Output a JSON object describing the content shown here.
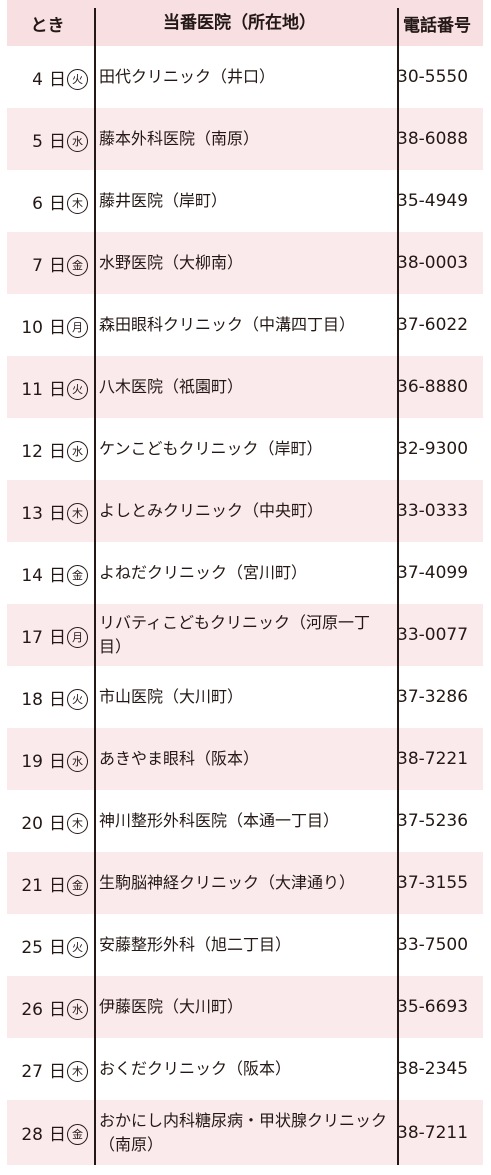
{
  "headers": {
    "date": "とき",
    "clinic": "当番医院（所在地）",
    "phone": "電話番号"
  },
  "rows": [
    {
      "day": "4",
      "unit": "日",
      "dow": "火",
      "clinic": "田代クリニック（井口）",
      "phone": "30-5550"
    },
    {
      "day": "5",
      "unit": "日",
      "dow": "水",
      "clinic": "藤本外科医院（南原）",
      "phone": "38-6088"
    },
    {
      "day": "6",
      "unit": "日",
      "dow": "木",
      "clinic": "藤井医院（岸町）",
      "phone": "35-4949"
    },
    {
      "day": "7",
      "unit": "日",
      "dow": "金",
      "clinic": "水野医院（大柳南）",
      "phone": "38-0003"
    },
    {
      "day": "10",
      "unit": "日",
      "dow": "月",
      "clinic": "森田眼科クリニック（中溝四丁目）",
      "phone": "37-6022"
    },
    {
      "day": "11",
      "unit": "日",
      "dow": "火",
      "clinic": "八木医院（祇園町）",
      "phone": "36-8880"
    },
    {
      "day": "12",
      "unit": "日",
      "dow": "水",
      "clinic": "ケンこどもクリニック（岸町）",
      "phone": "32-9300"
    },
    {
      "day": "13",
      "unit": "日",
      "dow": "木",
      "clinic": "よしとみクリニック（中央町）",
      "phone": "33-0333"
    },
    {
      "day": "14",
      "unit": "日",
      "dow": "金",
      "clinic": "よねだクリニック（宮川町）",
      "phone": "37-4099"
    },
    {
      "day": "17",
      "unit": "日",
      "dow": "月",
      "clinic": "リバティこどもクリニック（河原一丁目）",
      "phone": "33-0077"
    },
    {
      "day": "18",
      "unit": "日",
      "dow": "火",
      "clinic": "市山医院（大川町）",
      "phone": "37-3286"
    },
    {
      "day": "19",
      "unit": "日",
      "dow": "水",
      "clinic": "あきやま眼科（阪本）",
      "phone": "38-7221"
    },
    {
      "day": "20",
      "unit": "日",
      "dow": "木",
      "clinic": "神川整形外科医院（本通一丁目）",
      "phone": "37-5236"
    },
    {
      "day": "21",
      "unit": "日",
      "dow": "金",
      "clinic": "生駒脳神経クリニック（大津通り）",
      "phone": "37-3155"
    },
    {
      "day": "25",
      "unit": "日",
      "dow": "火",
      "clinic": "安藤整形外科（旭二丁目）",
      "phone": "33-7500"
    },
    {
      "day": "26",
      "unit": "日",
      "dow": "水",
      "clinic": "伊藤医院（大川町）",
      "phone": "35-6693"
    },
    {
      "day": "27",
      "unit": "日",
      "dow": "木",
      "clinic": "おくだクリニック（阪本）",
      "phone": "38-2345"
    },
    {
      "day": "28",
      "unit": "日",
      "dow": "金",
      "clinic": "おかにし内科糖尿病・甲状腺クリニック（南原）",
      "phone": "38-7211"
    }
  ]
}
